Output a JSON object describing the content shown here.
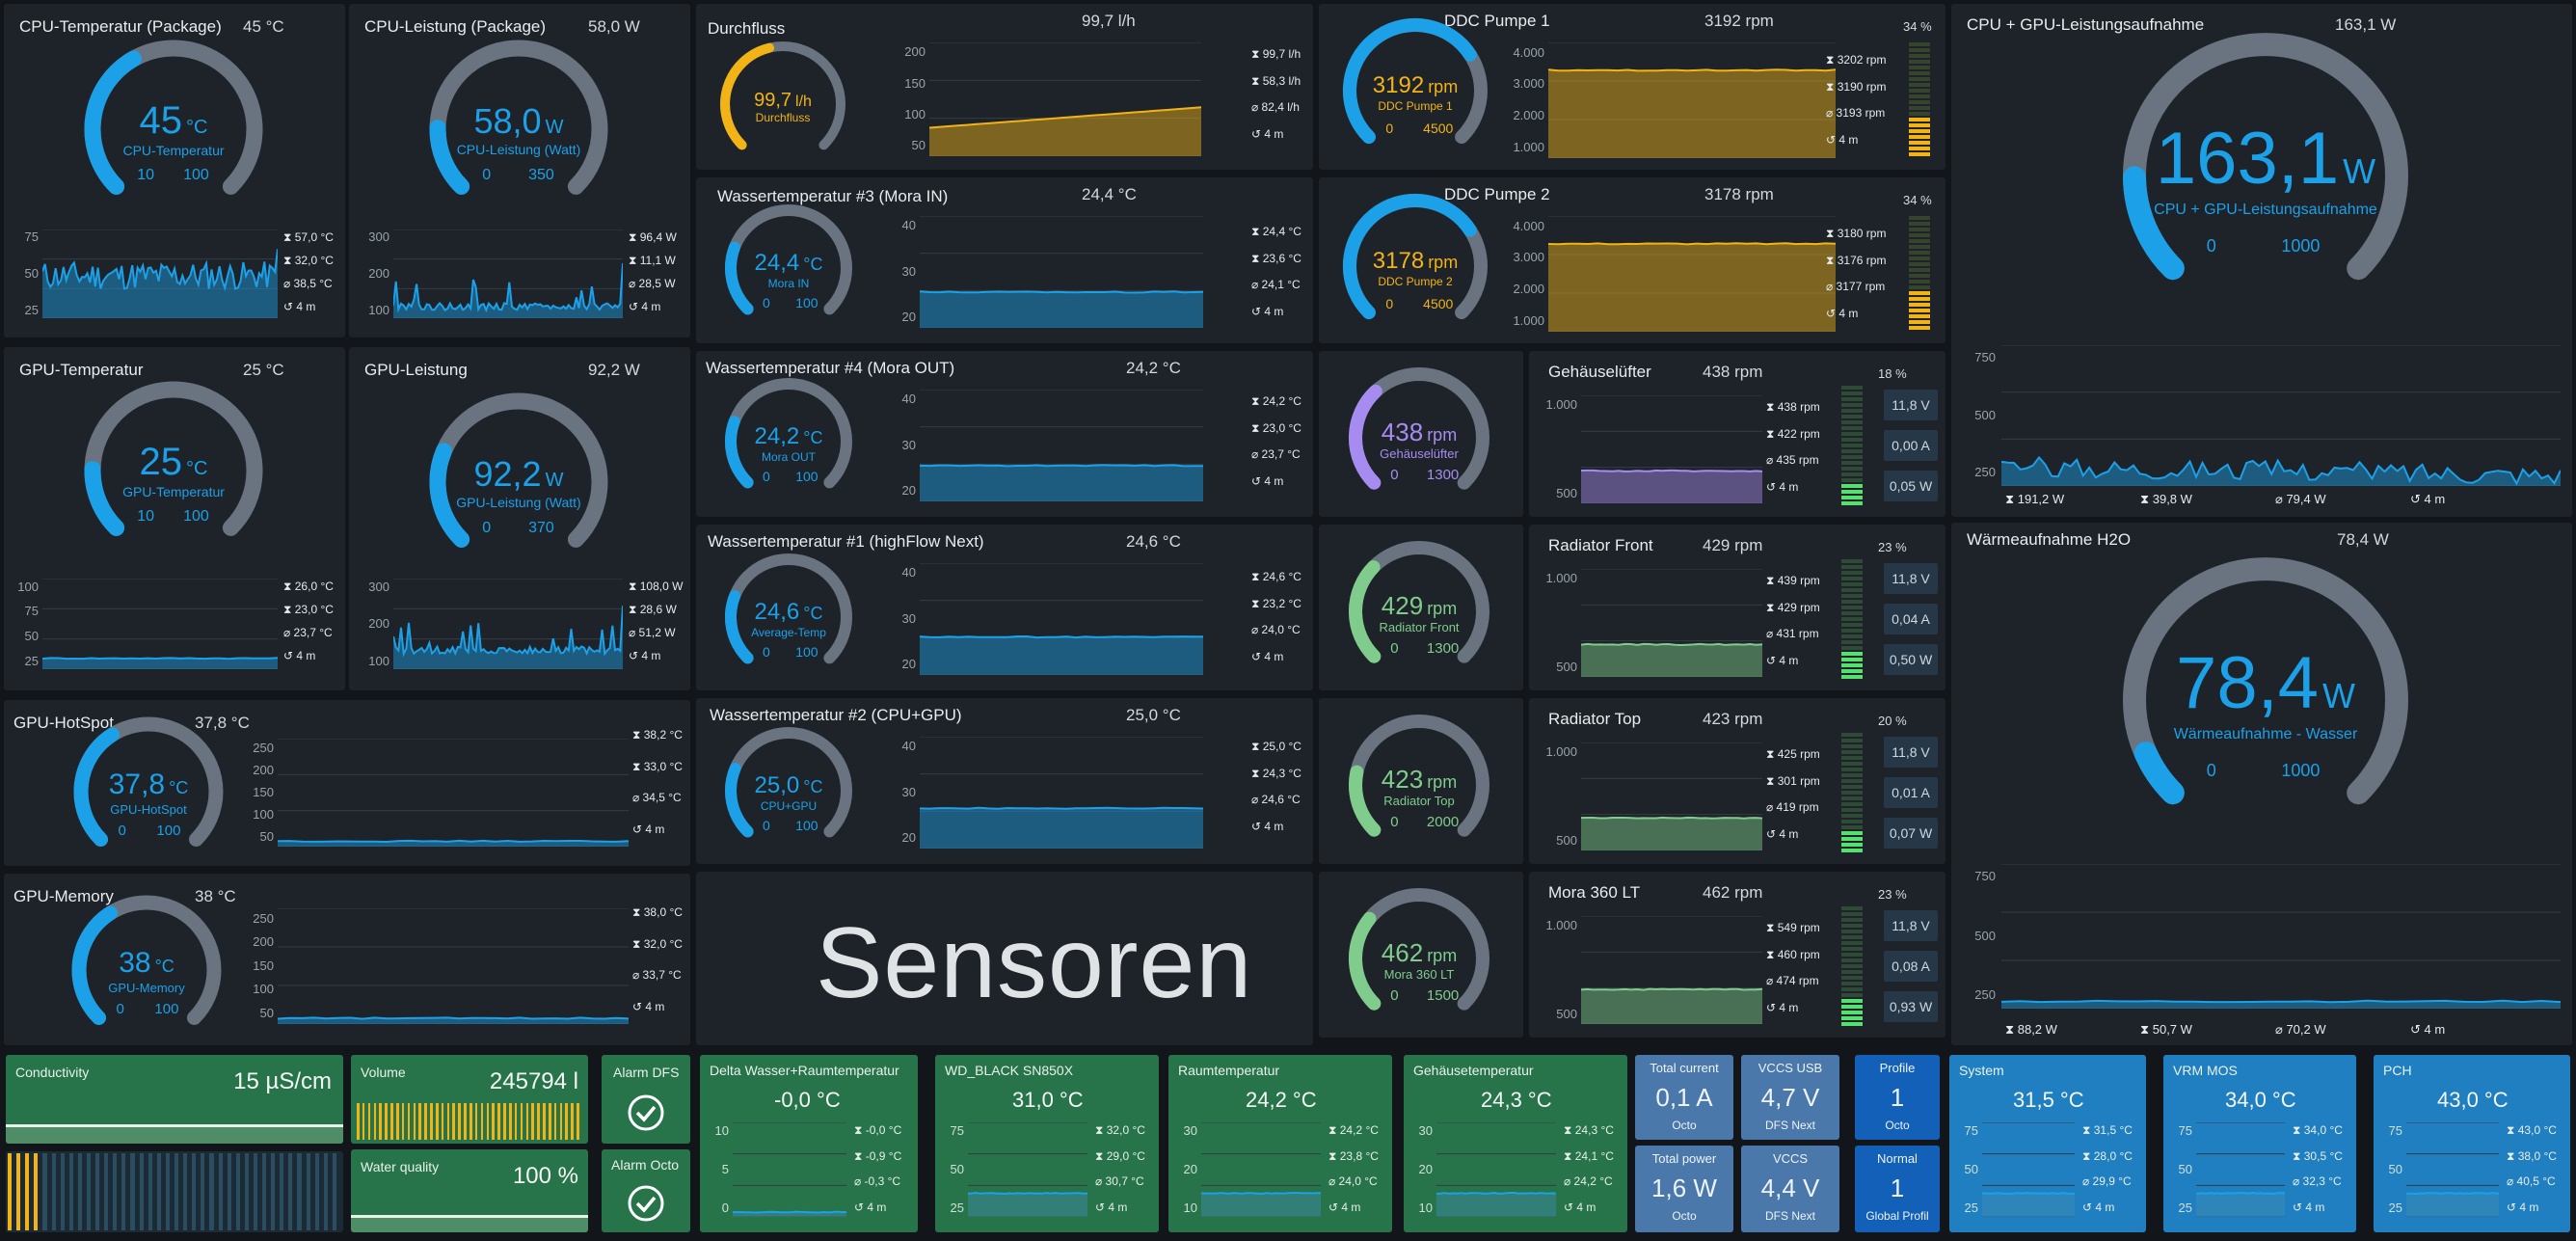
{
  "colors": {
    "blue": "#1ca0e8",
    "orange": "#f2b316",
    "purple": "#a68cf0",
    "green": "#7fcc8c",
    "arc_bg": "#6a7480"
  },
  "cpu_temp": {
    "title": "CPU-Temperatur (Package)",
    "value": "45 °C",
    "gauge_num": "45",
    "gauge_unit": "°C",
    "gauge_label": "CPU-Temperatur",
    "min": "10",
    "max": "100",
    "fraction": 0.39,
    "stats": [
      "⧗ 57,0 °C",
      "⧗ 32,0 °C",
      "⌀ 38,5 °C",
      "↺ 4 m"
    ],
    "ticks": [
      "75",
      "50",
      "25"
    ]
  },
  "cpu_power": {
    "title": "CPU-Leistung (Package)",
    "value": "58,0 W",
    "gauge_num": "58,0",
    "gauge_unit": "W",
    "gauge_label": "CPU-Leistung (Watt)",
    "min": "0",
    "max": "350",
    "fraction": 0.17,
    "stats": [
      "⧗ 96,4 W",
      "⧗ 11,1 W",
      "⌀ 28,5 W",
      "↺ 4 m"
    ],
    "ticks": [
      "300",
      "200",
      "100"
    ]
  },
  "gpu_temp": {
    "title": "GPU-Temperatur",
    "value": "25 °C",
    "gauge_num": "25",
    "gauge_unit": "°C",
    "gauge_label": "GPU-Temperatur",
    "min": "10",
    "max": "100",
    "fraction": 0.17,
    "stats": [
      "⧗ 26,0 °C",
      "⧗ 23,0 °C",
      "⌀ 23,7 °C",
      "↺ 4 m"
    ],
    "ticks": [
      "100",
      "75",
      "50",
      "25"
    ]
  },
  "gpu_power": {
    "title": "GPU-Leistung",
    "value": "92,2 W",
    "gauge_num": "92,2",
    "gauge_unit": "W",
    "gauge_label": "GPU-Leistung (Watt)",
    "min": "0",
    "max": "370",
    "fraction": 0.25,
    "stats": [
      "⧗ 108,0 W",
      "⧗ 28,6 W",
      "⌀ 51,2 W",
      "↺ 4 m"
    ],
    "ticks": [
      "300",
      "200",
      "100"
    ]
  },
  "gpu_hotspot": {
    "title": "GPU-HotSpot",
    "value": "37,8 °C",
    "gauge_num": "37,8",
    "gauge_unit": "°C",
    "gauge_label": "GPU-HotSpot",
    "min": "0",
    "max": "100",
    "fraction": 0.38,
    "stats": [
      "⧗ 38,2 °C",
      "⧗ 33,0 °C",
      "⌀ 34,5 °C",
      "↺ 4 m"
    ],
    "ticks": [
      "250",
      "200",
      "150",
      "100",
      "50"
    ]
  },
  "gpu_memory": {
    "title": "GPU-Memory",
    "value": "38 °C",
    "gauge_num": "38",
    "gauge_unit": "°C",
    "gauge_label": "GPU-Memory",
    "min": "0",
    "max": "100",
    "fraction": 0.38,
    "stats": [
      "⧗ 38,0 °C",
      "⧗ 32,0 °C",
      "⌀ 33,7 °C",
      "↺ 4 m"
    ],
    "ticks": [
      "250",
      "200",
      "150",
      "100",
      "50"
    ]
  },
  "flow": {
    "title": "Durchfluss",
    "value": "99,7 l/h",
    "gauge_num": "99,7",
    "gauge_unit": "l/h",
    "gauge_label": "Durchfluss",
    "fraction": 0.45,
    "stats": [
      "⧗ 99,7 l/h",
      "⧗ 58,3 l/h",
      "⌀ 82,4 l/h",
      "↺ 4 m"
    ],
    "ticks": [
      "200",
      "150",
      "100",
      "50"
    ]
  },
  "water3": {
    "title": "Wassertemperatur #3 (Mora IN)",
    "value": "24,4 °C",
    "gauge_num": "24,4",
    "gauge_unit": "°C",
    "gauge_label": "Mora IN",
    "min": "0",
    "max": "100",
    "fraction": 0.244,
    "stats": [
      "⧗ 24,4 °C",
      "⧗ 23,6 °C",
      "⌀ 24,1 °C",
      "↺ 4 m"
    ],
    "ticks": [
      "40",
      "30",
      "20"
    ]
  },
  "water4": {
    "title": "Wassertemperatur #4 (Mora OUT)",
    "value": "24,2 °C",
    "gauge_num": "24,2",
    "gauge_unit": "°C",
    "gauge_label": "Mora OUT",
    "min": "0",
    "max": "100",
    "fraction": 0.242,
    "stats": [
      "⧗ 24,2 °C",
      "⧗ 23,0 °C",
      "⌀ 23,7 °C",
      "↺ 4 m"
    ],
    "ticks": [
      "40",
      "30",
      "20"
    ]
  },
  "water1": {
    "title": "Wassertemperatur #1 (highFlow Next)",
    "value": "24,6 °C",
    "gauge_num": "24,6",
    "gauge_unit": "°C",
    "gauge_label": "Average-Temp",
    "min": "0",
    "max": "100",
    "fraction": 0.246,
    "stats": [
      "⧗ 24,6 °C",
      "⧗ 23,2 °C",
      "⌀ 24,0 °C",
      "↺ 4 m"
    ],
    "ticks": [
      "40",
      "30",
      "20"
    ]
  },
  "water2": {
    "title": "Wassertemperatur #2 (CPU+GPU)",
    "value": "25,0 °C",
    "gauge_num": "25,0",
    "gauge_unit": "°C",
    "gauge_label": "CPU+GPU",
    "min": "0",
    "max": "100",
    "fraction": 0.25,
    "stats": [
      "⧗ 25,0 °C",
      "⧗ 24,3 °C",
      "⌀ 24,6 °C",
      "↺ 4 m"
    ],
    "ticks": [
      "40",
      "30",
      "20"
    ]
  },
  "sensoren": "Sensoren",
  "pump1": {
    "title": "DDC Pumpe 1",
    "value": "3192 rpm",
    "gauge_num": "3192",
    "gauge_unit": "rpm",
    "gauge_label": "DDC Pumpe 1",
    "min": "0",
    "max": "4500",
    "fraction": 0.71,
    "pct": "34 %",
    "level": 0.34,
    "stats": [
      "⧗ 3202 rpm",
      "⧗ 3190 rpm",
      "⌀ 3193 rpm",
      "↺ 4 m"
    ],
    "ticks": [
      "4.000",
      "3.000",
      "2.000",
      "1.000"
    ]
  },
  "pump2": {
    "title": "DDC Pumpe 2",
    "value": "3178 rpm",
    "gauge_num": "3178",
    "gauge_unit": "rpm",
    "gauge_label": "DDC Pumpe 2",
    "min": "0",
    "max": "4500",
    "fraction": 0.71,
    "pct": "34 %",
    "level": 0.34,
    "stats": [
      "⧗ 3180 rpm",
      "⧗ 3176 rpm",
      "⌀ 3177 rpm",
      "↺ 4 m"
    ],
    "ticks": [
      "4.000",
      "3.000",
      "2.000",
      "1.000"
    ]
  },
  "fan_case": {
    "gauge_num": "438",
    "gauge_unit": "rpm",
    "gauge_label": "Gehäuselüfter",
    "min": "0",
    "max": "1300",
    "fraction": 0.34,
    "title": "Gehäuselüfter",
    "value": "438 rpm",
    "pct": "18 %",
    "level": 0.18,
    "stats": [
      "⧗ 438 rpm",
      "⧗ 422 rpm",
      "⌀ 435 rpm",
      "↺ 4 m"
    ],
    "ticks": [
      "1.000",
      "500"
    ],
    "volt": "11,8 V",
    "amp": "0,00 A",
    "watt": "0,05 W"
  },
  "fan_front": {
    "gauge_num": "429",
    "gauge_unit": "rpm",
    "gauge_label": "Radiator Front",
    "min": "0",
    "max": "1300",
    "fraction": 0.33,
    "title": "Radiator Front",
    "value": "429 rpm",
    "pct": "23 %",
    "level": 0.23,
    "stats": [
      "⧗ 439 rpm",
      "⧗ 429 rpm",
      "⌀ 431 rpm",
      "↺ 4 m"
    ],
    "ticks": [
      "1.000",
      "500"
    ],
    "volt": "11,8 V",
    "amp": "0,04 A",
    "watt": "0,50 W"
  },
  "fan_top": {
    "gauge_num": "423",
    "gauge_unit": "rpm",
    "gauge_label": "Radiator Top",
    "min": "0",
    "max": "2000",
    "fraction": 0.21,
    "title": "Radiator Top",
    "value": "423 rpm",
    "pct": "20 %",
    "level": 0.2,
    "stats": [
      "⧗ 425 rpm",
      "⧗ 301 rpm",
      "⌀ 419 rpm",
      "↺ 4 m"
    ],
    "ticks": [
      "1.000",
      "500"
    ],
    "volt": "11,8 V",
    "amp": "0,01 A",
    "watt": "0,07 W"
  },
  "fan_mora": {
    "gauge_num": "462",
    "gauge_unit": "rpm",
    "gauge_label": "Mora 360 LT",
    "min": "0",
    "max": "1500",
    "fraction": 0.31,
    "title": "Mora 360 LT",
    "value": "462 rpm",
    "pct": "23 %",
    "level": 0.23,
    "stats": [
      "⧗ 549 rpm",
      "⧗ 460 rpm",
      "⌀ 474 rpm",
      "↺ 4 m"
    ],
    "ticks": [
      "1.000",
      "500"
    ],
    "volt": "11,8 V",
    "amp": "0,08 A",
    "watt": "0,93 W"
  },
  "total_power": {
    "title": "CPU + GPU-Leistungsaufnahme",
    "value": "163,1 W",
    "gauge_num": "163,1",
    "gauge_unit": "W",
    "gauge_label": "CPU + GPU-Leistungsaufnahme",
    "min": "0",
    "max": "1000",
    "fraction": 0.163,
    "ticks": [
      "750",
      "500",
      "250"
    ],
    "stats": [
      "⧗ 191,2 W",
      "⧗ 39,8 W",
      "⌀ 79,4 W",
      "↺ 4 m"
    ]
  },
  "heat": {
    "title": "Wärmeaufnahme H2O",
    "value": "78,4 W",
    "gauge_num": "78,4",
    "gauge_unit": "W",
    "gauge_label": "Wärmeaufnahme - Wasser",
    "min": "0",
    "max": "1000",
    "fraction": 0.078,
    "ticks": [
      "750",
      "500",
      "250"
    ],
    "stats": [
      "⧗ 88,2 W",
      "⧗ 50,7 W",
      "⌀ 70,2 W",
      "↺ 4 m"
    ]
  },
  "bottom": {
    "conductivity": {
      "label": "Conductivity",
      "value": "15 µS/cm"
    },
    "volume": {
      "label": "Volume",
      "value": "245794 l"
    },
    "water_quality": {
      "label": "Water quality",
      "value": "100 %"
    },
    "alarm_dfs": {
      "label": "Alarm DFS"
    },
    "alarm_octo": {
      "label": "Alarm Octo"
    },
    "delta": {
      "label": "Delta Wasser+Raumtemperatur",
      "value": "-0,0 °C",
      "stats": [
        "⧗ -0,0 °C",
        "⧗ -0,9 °C",
        "⌀ -0,3 °C",
        "↺ 4 m"
      ],
      "ticks": [
        "10",
        "5",
        "0"
      ]
    },
    "ssd": {
      "label": "WD_BLACK SN850X",
      "value": "31,0 °C",
      "stats": [
        "⧗ 32,0 °C",
        "⧗ 29,0 °C",
        "⌀ 30,7 °C",
        "↺ 4 m"
      ],
      "ticks": [
        "75",
        "50",
        "25"
      ]
    },
    "room": {
      "label": "Raumtemperatur",
      "value": "24,2 °C",
      "stats": [
        "⧗ 24,2 °C",
        "⧗ 23,8 °C",
        "⌀ 24,0 °C",
        "↺ 4 m"
      ],
      "ticks": [
        "30",
        "20",
        "10"
      ]
    },
    "case": {
      "label": "Gehäusetemperatur",
      "value": "24,3 °C",
      "stats": [
        "⧗ 24,3 °C",
        "⧗ 24,1 °C",
        "⌀ 24,2 °C",
        "↺ 4 m"
      ],
      "ticks": [
        "30",
        "20",
        "10"
      ]
    },
    "total_current": {
      "label": "Total current",
      "value": "0,1 A",
      "sub": "Octo"
    },
    "vccs_usb": {
      "label": "VCCS USB",
      "value": "4,7 V",
      "sub": "DFS Next"
    },
    "profile": {
      "label": "Profile",
      "value": "1",
      "sub": "Octo"
    },
    "total_power": {
      "label": "Total power",
      "value": "1,6 W",
      "sub": "Octo"
    },
    "vccs": {
      "label": "VCCS",
      "value": "4,4 V",
      "sub": "DFS Next"
    },
    "normal": {
      "label": "Normal",
      "value": "1",
      "sub": "Global Profil"
    },
    "system": {
      "label": "System",
      "value": "31,5 °C",
      "stats": [
        "⧗ 31,5 °C",
        "⧗ 28,0 °C",
        "⌀ 29,9 °C",
        "↺ 4 m"
      ],
      "ticks": [
        "75",
        "50",
        "25"
      ]
    },
    "vrm": {
      "label": "VRM MOS",
      "value": "34,0 °C",
      "stats": [
        "⧗ 34,0 °C",
        "⧗ 30,5 °C",
        "⌀ 32,3 °C",
        "↺ 4 m"
      ],
      "ticks": [
        "75",
        "50",
        "25"
      ]
    },
    "pch": {
      "label": "PCH",
      "value": "43,0 °C",
      "stats": [
        "⧗ 43,0 °C",
        "⧗ 38,0 °C",
        "⌀ 40,5 °C",
        "↺ 4 m"
      ],
      "ticks": [
        "75",
        "50",
        "25"
      ]
    }
  }
}
